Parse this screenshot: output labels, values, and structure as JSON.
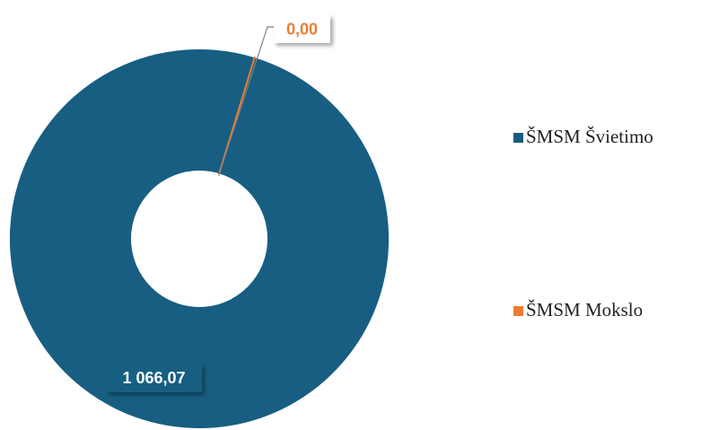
{
  "chart_data": {
    "type": "donut",
    "categories": [
      "ŠMSM Švietimo",
      "ŠMSM Mokslo"
    ],
    "values": [
      1066.07,
      0
    ],
    "value_labels": [
      "1 066,07",
      "0,00"
    ],
    "colors": [
      "#175e82",
      "#ed7d31"
    ]
  }
}
